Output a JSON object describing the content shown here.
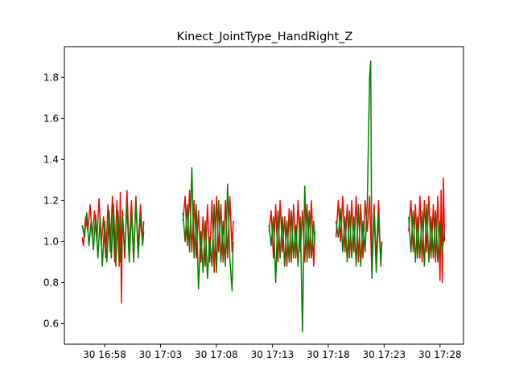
{
  "chart_data": {
    "type": "line",
    "title": "Kinect_JointType_HandRight_Z",
    "xlabel": "",
    "ylabel": "",
    "x_unit": "minutes after 30 16:53",
    "x_ticks": [
      {
        "value": 5,
        "label": "30 16:58"
      },
      {
        "value": 10,
        "label": "30 17:03"
      },
      {
        "value": 15,
        "label": "30 17:08"
      },
      {
        "value": 20,
        "label": "30 17:13"
      },
      {
        "value": 25,
        "label": "30 17:18"
      },
      {
        "value": 30,
        "label": "30 17:23"
      },
      {
        "value": 35,
        "label": "30 17:28"
      }
    ],
    "y_ticks": [
      {
        "value": 0.6,
        "label": "0.6"
      },
      {
        "value": 0.8,
        "label": "0.8"
      },
      {
        "value": 1.0,
        "label": "1.0"
      },
      {
        "value": 1.2,
        "label": "1.2"
      },
      {
        "value": 1.4,
        "label": "1.4"
      },
      {
        "value": 1.6,
        "label": "1.6"
      },
      {
        "value": 1.8,
        "label": "1.8"
      }
    ],
    "xlim": [
      1.4,
      37.1
    ],
    "ylim": [
      0.5,
      1.95
    ],
    "grid": false,
    "series": [
      {
        "color": "#ff0000",
        "segments": [
          [
            [
              3.0,
              1.02
            ],
            [
              3.1,
              0.98
            ],
            [
              3.3,
              1.12
            ],
            [
              3.5,
              1.05
            ],
            [
              3.7,
              1.18
            ],
            [
              3.9,
              1.02
            ],
            [
              4.1,
              1.15
            ],
            [
              4.3,
              1.0
            ],
            [
              4.5,
              1.21
            ],
            [
              4.7,
              0.98
            ],
            [
              4.9,
              1.12
            ],
            [
              5.1,
              0.92
            ],
            [
              5.3,
              1.18
            ],
            [
              5.5,
              0.95
            ],
            [
              5.7,
              1.22
            ],
            [
              5.9,
              0.9
            ],
            [
              6.1,
              1.2
            ],
            [
              6.3,
              0.88
            ],
            [
              6.4,
              1.24
            ],
            [
              6.5,
              0.7
            ],
            [
              6.6,
              1.15
            ],
            [
              6.8,
              0.92
            ],
            [
              7.0,
              1.25
            ],
            [
              7.2,
              0.95
            ],
            [
              7.4,
              1.2
            ],
            [
              7.6,
              0.9
            ],
            [
              7.8,
              1.22
            ],
            [
              8.0,
              0.95
            ],
            [
              8.2,
              1.18
            ],
            [
              8.4,
              1.0
            ],
            [
              8.5,
              1.1
            ]
          ],
          [
            [
              12.0,
              1.1
            ],
            [
              12.2,
              1.22
            ],
            [
              12.4,
              0.98
            ],
            [
              12.6,
              1.25
            ],
            [
              12.8,
              0.95
            ],
            [
              13.0,
              1.2
            ],
            [
              13.2,
              0.92
            ],
            [
              13.4,
              1.15
            ],
            [
              13.6,
              0.9
            ],
            [
              13.8,
              1.12
            ],
            [
              14.0,
              0.88
            ],
            [
              14.2,
              1.18
            ],
            [
              14.4,
              0.9
            ],
            [
              14.6,
              1.2
            ],
            [
              14.8,
              0.85
            ],
            [
              15.0,
              1.22
            ],
            [
              15.2,
              0.95
            ],
            [
              15.4,
              1.18
            ],
            [
              15.6,
              0.9
            ],
            [
              15.8,
              1.2
            ],
            [
              16.0,
              0.92
            ],
            [
              16.2,
              1.22
            ],
            [
              16.4,
              0.95
            ],
            [
              16.5,
              1.1
            ]
          ],
          [
            [
              19.7,
              1.05
            ],
            [
              19.9,
              1.15
            ],
            [
              20.1,
              0.92
            ],
            [
              20.3,
              1.18
            ],
            [
              20.5,
              0.9
            ],
            [
              20.7,
              1.2
            ],
            [
              20.9,
              0.95
            ],
            [
              21.1,
              1.12
            ],
            [
              21.3,
              0.88
            ],
            [
              21.5,
              1.16
            ],
            [
              21.7,
              0.9
            ],
            [
              21.9,
              1.18
            ],
            [
              22.1,
              0.92
            ],
            [
              22.3,
              1.2
            ],
            [
              22.5,
              0.95
            ],
            [
              22.7,
              1.15
            ],
            [
              22.9,
              0.9
            ],
            [
              23.1,
              1.18
            ],
            [
              23.3,
              0.92
            ],
            [
              23.5,
              1.2
            ],
            [
              23.7,
              0.88
            ],
            [
              23.8,
              1.05
            ]
          ],
          [
            [
              25.7,
              1.02
            ],
            [
              25.9,
              1.2
            ],
            [
              26.1,
              1.0
            ],
            [
              26.3,
              1.22
            ],
            [
              26.5,
              0.95
            ],
            [
              26.7,
              1.18
            ],
            [
              26.9,
              0.92
            ],
            [
              27.1,
              1.2
            ],
            [
              27.3,
              0.95
            ],
            [
              27.5,
              1.22
            ],
            [
              27.7,
              0.9
            ],
            [
              27.9,
              1.18
            ],
            [
              28.1,
              0.92
            ],
            [
              28.3,
              1.2
            ],
            [
              28.5,
              1.05
            ],
            [
              28.7,
              1.22
            ],
            [
              28.9,
              0.85
            ],
            [
              29.1,
              1.18
            ],
            [
              29.3,
              0.9
            ],
            [
              29.5,
              1.2
            ],
            [
              29.7,
              0.88
            ],
            [
              29.8,
              1.0
            ]
          ],
          [
            [
              32.2,
              1.05
            ],
            [
              32.4,
              1.2
            ],
            [
              32.6,
              0.95
            ],
            [
              32.8,
              1.18
            ],
            [
              33.0,
              0.92
            ],
            [
              33.2,
              1.22
            ],
            [
              33.4,
              0.9
            ],
            [
              33.6,
              1.2
            ],
            [
              33.8,
              0.95
            ],
            [
              34.0,
              1.22
            ],
            [
              34.2,
              0.92
            ],
            [
              34.4,
              1.18
            ],
            [
              34.6,
              0.9
            ],
            [
              34.8,
              1.22
            ],
            [
              35.0,
              0.81
            ],
            [
              35.1,
              1.25
            ],
            [
              35.2,
              0.8
            ],
            [
              35.3,
              1.31
            ],
            [
              35.4,
              1.0
            ]
          ]
        ]
      },
      {
        "color": "#008000",
        "segments": [
          [
            [
              3.0,
              1.08
            ],
            [
              3.2,
              1.02
            ],
            [
              3.4,
              1.14
            ],
            [
              3.6,
              0.98
            ],
            [
              3.8,
              1.1
            ],
            [
              4.0,
              0.96
            ],
            [
              4.2,
              1.13
            ],
            [
              4.4,
              0.92
            ],
            [
              4.6,
              1.12
            ],
            [
              4.8,
              0.88
            ],
            [
              5.0,
              1.1
            ],
            [
              5.2,
              0.9
            ],
            [
              5.4,
              1.15
            ],
            [
              5.6,
              0.92
            ],
            [
              5.8,
              1.18
            ],
            [
              6.0,
              0.88
            ],
            [
              6.2,
              1.15
            ],
            [
              6.4,
              0.9
            ],
            [
              6.6,
              1.12
            ],
            [
              6.8,
              0.95
            ],
            [
              7.0,
              1.18
            ],
            [
              7.2,
              0.9
            ],
            [
              7.4,
              1.15
            ],
            [
              7.6,
              0.92
            ],
            [
              7.8,
              1.2
            ],
            [
              8.0,
              0.92
            ],
            [
              8.2,
              1.12
            ],
            [
              8.4,
              0.98
            ],
            [
              8.5,
              1.05
            ]
          ],
          [
            [
              12.0,
              1.14
            ],
            [
              12.2,
              1.0
            ],
            [
              12.4,
              1.18
            ],
            [
              12.6,
              0.95
            ],
            [
              12.8,
              1.36
            ],
            [
              13.0,
              0.92
            ],
            [
              13.2,
              1.18
            ],
            [
              13.4,
              0.77
            ],
            [
              13.6,
              1.05
            ],
            [
              13.8,
              0.85
            ],
            [
              14.0,
              1.1
            ],
            [
              14.2,
              0.82
            ],
            [
              14.4,
              1.02
            ],
            [
              14.6,
              0.88
            ],
            [
              14.8,
              1.18
            ],
            [
              15.0,
              0.85
            ],
            [
              15.2,
              1.2
            ],
            [
              15.4,
              0.9
            ],
            [
              15.6,
              1.1
            ],
            [
              15.8,
              0.88
            ],
            [
              16.0,
              1.28
            ],
            [
              16.2,
              0.92
            ],
            [
              16.4,
              0.76
            ],
            [
              16.5,
              1.0
            ]
          ],
          [
            [
              19.7,
              1.08
            ],
            [
              19.9,
              0.98
            ],
            [
              20.1,
              1.12
            ],
            [
              20.3,
              0.8
            ],
            [
              20.5,
              1.15
            ],
            [
              20.7,
              0.92
            ],
            [
              20.9,
              1.12
            ],
            [
              21.1,
              0.88
            ],
            [
              21.3,
              1.1
            ],
            [
              21.5,
              0.9
            ],
            [
              21.7,
              1.15
            ],
            [
              21.9,
              0.92
            ],
            [
              22.1,
              1.08
            ],
            [
              22.3,
              0.88
            ],
            [
              22.5,
              1.12
            ],
            [
              22.7,
              0.56
            ],
            [
              22.9,
              1.27
            ],
            [
              23.1,
              0.9
            ],
            [
              23.3,
              1.15
            ],
            [
              23.5,
              0.92
            ],
            [
              23.7,
              1.1
            ],
            [
              23.8,
              1.0
            ]
          ],
          [
            [
              25.7,
              1.1
            ],
            [
              25.9,
              1.02
            ],
            [
              26.1,
              1.16
            ],
            [
              26.3,
              0.95
            ],
            [
              26.5,
              1.12
            ],
            [
              26.7,
              0.9
            ],
            [
              26.9,
              1.15
            ],
            [
              27.1,
              0.92
            ],
            [
              27.3,
              1.12
            ],
            [
              27.5,
              0.88
            ],
            [
              27.7,
              1.18
            ],
            [
              27.9,
              0.88
            ],
            [
              28.1,
              1.1
            ],
            [
              28.3,
              0.95
            ],
            [
              28.5,
              1.2
            ],
            [
              28.7,
              1.8
            ],
            [
              28.8,
              1.88
            ],
            [
              28.9,
              0.82
            ],
            [
              29.1,
              1.15
            ],
            [
              29.3,
              0.85
            ],
            [
              29.5,
              1.12
            ],
            [
              29.7,
              0.9
            ],
            [
              29.8,
              1.0
            ]
          ],
          [
            [
              32.2,
              1.12
            ],
            [
              32.4,
              0.95
            ],
            [
              32.6,
              1.15
            ],
            [
              32.8,
              0.9
            ],
            [
              33.0,
              1.12
            ],
            [
              33.2,
              0.92
            ],
            [
              33.4,
              1.15
            ],
            [
              33.6,
              0.88
            ],
            [
              33.8,
              1.18
            ],
            [
              34.0,
              0.9
            ],
            [
              34.2,
              1.12
            ],
            [
              34.4,
              0.92
            ],
            [
              34.6,
              1.15
            ],
            [
              34.8,
              0.9
            ],
            [
              35.0,
              1.1
            ],
            [
              35.2,
              0.95
            ],
            [
              35.4,
              1.05
            ]
          ]
        ]
      }
    ]
  }
}
